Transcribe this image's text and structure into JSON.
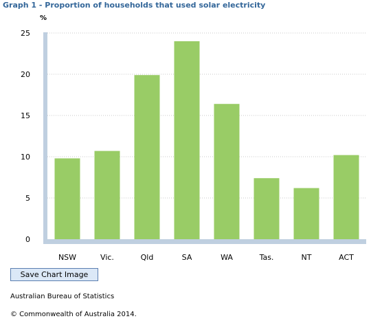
{
  "chart_data": {
    "type": "bar",
    "title": "Graph 1 - Proportion of households that used solar electricity",
    "ylabel": "%",
    "xlabel": "",
    "categories": [
      "NSW",
      "Vic.",
      "Qld",
      "SA",
      "WA",
      "Tas.",
      "NT",
      "ACT"
    ],
    "values": [
      9.8,
      10.7,
      19.9,
      24.0,
      16.4,
      7.4,
      6.2,
      10.2
    ],
    "ylim": [
      0,
      25
    ],
    "yticks": [
      "0",
      "5",
      "10",
      "15",
      "20",
      "25"
    ],
    "grid": true,
    "bar_color": "#99cc66",
    "axis_color": "#bfcfe0"
  },
  "controls": {
    "save_label": "Save Chart Image"
  },
  "footer": {
    "source": "Australian Bureau of Statistics",
    "copyright": "© Commonwealth of Australia 2014."
  }
}
